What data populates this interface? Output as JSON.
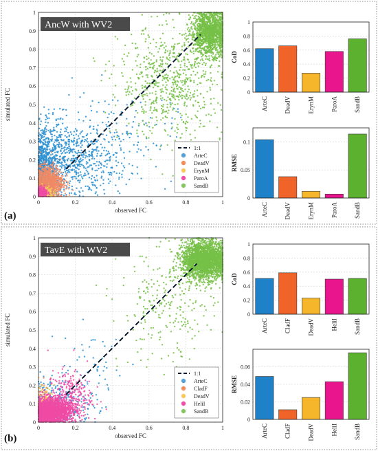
{
  "colors": {
    "ArteC": "#1f82c8",
    "DeadV_a": "#f0642a",
    "ErynM": "#f6b62c",
    "ParoA": "#e8158c",
    "SandB": "#5cb22e",
    "CladF": "#f0642a",
    "DeadV_b": "#f6b62c",
    "HeliI": "#e8158c",
    "scatter_ArteC": "#2a8fd1",
    "scatter_DeadV": "#f08a64",
    "scatter_ErynM": "#f4cc5e",
    "scatter_ParoA": "#ee4aa4",
    "scatter_SandB": "#76c046",
    "title_bg": "#4a4a4a",
    "dotted_border": "#888888"
  },
  "chart_data": [
    {
      "panel": "(a)",
      "type": "scatter",
      "title": "AncW with WV2",
      "xlabel": "observed FC",
      "ylabel": "simulated FC",
      "xlim": [
        0,
        1
      ],
      "ylim": [
        0,
        1
      ],
      "xticks": [
        "0",
        "0.2",
        "0.4",
        "0.6",
        "0.8",
        "1"
      ],
      "yticks": [
        "0",
        "0.1",
        "0.2",
        "0.3",
        "0.4",
        "0.5",
        "0.6",
        "0.7",
        "0.8",
        "0.9",
        "1"
      ],
      "grid": true,
      "reference_line": {
        "label": "1:1",
        "from": [
          0.15,
          0.15
        ],
        "to": [
          0.88,
          0.88
        ]
      },
      "legend_position": "bottom-right",
      "series": [
        {
          "name": "ArteC",
          "color_key": "scatter_ArteC",
          "legend_color_key": "ArteC",
          "clusters": [
            {
              "n": 700,
              "cx": 0.03,
              "cy": 0.12,
              "sx": 0.04,
              "sy": 0.1
            },
            {
              "n": 650,
              "cx": 0.18,
              "cy": 0.2,
              "sx": 0.12,
              "sy": 0.1
            },
            {
              "n": 160,
              "cx": 0.42,
              "cy": 0.32,
              "sx": 0.16,
              "sy": 0.13
            },
            {
              "n": 80,
              "cx": 0.05,
              "cy": 0.33,
              "sx": 0.05,
              "sy": 0.07
            }
          ]
        },
        {
          "name": "DeadV",
          "color_key": "scatter_DeadV",
          "legend_color_key": "DeadV_a",
          "clusters": [
            {
              "n": 900,
              "cx": 0.055,
              "cy": 0.08,
              "sx": 0.04,
              "sy": 0.045
            }
          ]
        },
        {
          "name": "ErynM",
          "color_key": "scatter_ErynM",
          "legend_color_key": "ErynM",
          "clusters": [
            {
              "n": 140,
              "cx": 0.03,
              "cy": 0.02,
              "sx": 0.025,
              "sy": 0.02
            }
          ]
        },
        {
          "name": "ParoA",
          "color_key": "scatter_ParoA",
          "legend_color_key": "ParoA",
          "clusters": [
            {
              "n": 220,
              "cx": 0.02,
              "cy": 0.02,
              "sx": 0.015,
              "sy": 0.015
            }
          ]
        },
        {
          "name": "SandB",
          "color_key": "scatter_SandB",
          "legend_color_key": "SandB",
          "clusters": [
            {
              "n": 1400,
              "cx": 0.93,
              "cy": 0.89,
              "sx": 0.05,
              "sy": 0.06
            },
            {
              "n": 700,
              "cx": 0.72,
              "cy": 0.62,
              "sx": 0.14,
              "sy": 0.15
            }
          ]
        }
      ]
    },
    {
      "panel": "(a)",
      "type": "bar",
      "ylabel": "CoD",
      "categories": [
        "ArteC",
        "DeadV",
        "ErynM",
        "ParoA",
        "SandB"
      ],
      "color_keys": [
        "ArteC",
        "DeadV_a",
        "ErynM",
        "ParoA",
        "SandB"
      ],
      "values": [
        0.62,
        0.66,
        0.27,
        0.58,
        0.76
      ],
      "ylim": [
        0,
        1
      ],
      "yticks": [
        "0",
        "0.2",
        "0.4",
        "0.6",
        "0.8",
        "1"
      ]
    },
    {
      "panel": "(a)",
      "type": "bar",
      "ylabel": "RMSE",
      "categories": [
        "ArteC",
        "DeadV",
        "ErynM",
        "ParoA",
        "SandB"
      ],
      "color_keys": [
        "ArteC",
        "DeadV_a",
        "ErynM",
        "ParoA",
        "SandB"
      ],
      "values": [
        0.104,
        0.038,
        0.012,
        0.007,
        0.114
      ],
      "ylim": [
        0,
        0.125
      ],
      "yticks": [
        "0",
        "0.05",
        "0.1"
      ]
    },
    {
      "panel": "(b)",
      "type": "scatter",
      "title": "TavE with WV2",
      "xlabel": "observed FC",
      "ylabel": "simulated FC",
      "xlim": [
        0,
        1
      ],
      "ylim": [
        0,
        1
      ],
      "xticks": [
        "0",
        "0.2",
        "0.4",
        "0.6",
        "0.8",
        "1"
      ],
      "yticks": [
        "0",
        "0.1",
        "0.2",
        "0.3",
        "0.4",
        "0.5",
        "0.6",
        "0.7",
        "0.8",
        "0.9",
        "1"
      ],
      "grid": true,
      "reference_line": {
        "label": "1:1",
        "from": [
          0.15,
          0.15
        ],
        "to": [
          0.86,
          0.86
        ]
      },
      "legend_position": "bottom-right",
      "series": [
        {
          "name": "ArteC",
          "color_key": "scatter_ArteC",
          "legend_color_key": "ArteC",
          "clusters": [
            {
              "n": 260,
              "cx": 0.12,
              "cy": 0.1,
              "sx": 0.1,
              "sy": 0.07
            },
            {
              "n": 45,
              "cx": 0.3,
              "cy": 0.3,
              "sx": 0.12,
              "sy": 0.1
            }
          ]
        },
        {
          "name": "CladF",
          "color_key": "scatter_DeadV",
          "legend_color_key": "CladF",
          "clusters": [
            {
              "n": 60,
              "cx": 0.03,
              "cy": 0.12,
              "sx": 0.02,
              "sy": 0.05
            }
          ]
        },
        {
          "name": "DeadV",
          "color_key": "scatter_ErynM",
          "legend_color_key": "DeadV_b",
          "clusters": [
            {
              "n": 120,
              "cx": 0.03,
              "cy": 0.1,
              "sx": 0.03,
              "sy": 0.06
            }
          ]
        },
        {
          "name": "HeliI",
          "color_key": "scatter_ParoA",
          "legend_color_key": "HeliI",
          "clusters": [
            {
              "n": 1800,
              "cx": 0.07,
              "cy": 0.06,
              "sx": 0.055,
              "sy": 0.035
            },
            {
              "n": 280,
              "cx": 0.17,
              "cy": 0.14,
              "sx": 0.06,
              "sy": 0.07
            }
          ]
        },
        {
          "name": "SandB",
          "color_key": "scatter_SandB",
          "legend_color_key": "SandB",
          "clusters": [
            {
              "n": 2400,
              "cx": 0.9,
              "cy": 0.88,
              "sx": 0.06,
              "sy": 0.05
            },
            {
              "n": 260,
              "cx": 0.7,
              "cy": 0.62,
              "sx": 0.13,
              "sy": 0.16
            }
          ]
        }
      ]
    },
    {
      "panel": "(b)",
      "type": "bar",
      "ylabel": "CoD",
      "categories": [
        "ArteC",
        "CladF",
        "DeadV",
        "HeliI",
        "SandB"
      ],
      "color_keys": [
        "ArteC",
        "CladF",
        "DeadV_b",
        "HeliI",
        "SandB"
      ],
      "values": [
        0.51,
        0.59,
        0.23,
        0.5,
        0.51
      ],
      "ylim": [
        0,
        1
      ],
      "yticks": [
        "0",
        "0.2",
        "0.4",
        "0.6",
        "0.8",
        "1"
      ]
    },
    {
      "panel": "(b)",
      "type": "bar",
      "ylabel": "RMSE",
      "categories": [
        "ArteC",
        "CladF",
        "DeadV",
        "HeliI",
        "SandB"
      ],
      "color_keys": [
        "ArteC",
        "CladF",
        "DeadV_b",
        "HeliI",
        "SandB"
      ],
      "values": [
        0.049,
        0.011,
        0.025,
        0.043,
        0.076
      ],
      "ylim": [
        0,
        0.08
      ],
      "yticks": [
        "0",
        "0.02",
        "0.04",
        "0.06"
      ]
    }
  ]
}
